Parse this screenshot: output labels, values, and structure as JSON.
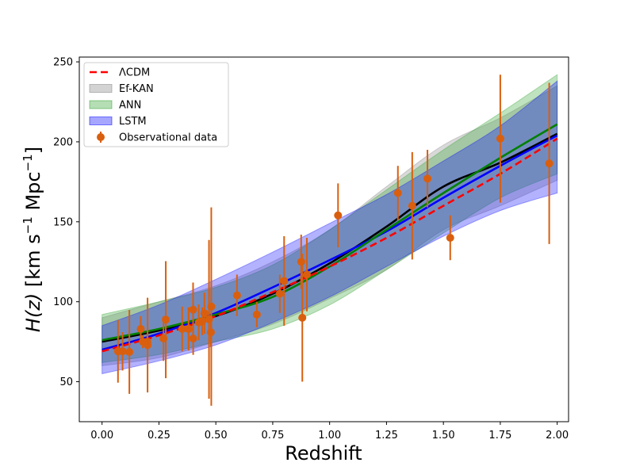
{
  "chart_data": {
    "type": "line",
    "xlabel": "Redshift",
    "ylabel_parts": [
      "H(z)",
      " [km s",
      "−1",
      " Mpc",
      "−1",
      "]"
    ],
    "xlim": [
      -0.1,
      2.05
    ],
    "ylim": [
      25,
      253
    ],
    "x_ticks": [
      "0.00",
      "0.25",
      "0.50",
      "0.75",
      "1.00",
      "1.25",
      "1.50",
      "1.75",
      "2.00"
    ],
    "y_ticks": [
      "50",
      "100",
      "150",
      "200",
      "250"
    ],
    "legend_position": "upper-left",
    "series": [
      {
        "name": "ΛCDM",
        "kind": "line",
        "color": "#ff0000",
        "style": "dashed",
        "x": [
          0,
          0.25,
          0.5,
          0.75,
          1.0,
          1.25,
          1.5,
          1.75,
          2.0
        ],
        "y": [
          69,
          79,
          91,
          106,
          122,
          140,
          160,
          180,
          202
        ]
      },
      {
        "name": "Ef-KAN",
        "kind": "band",
        "color": "#808080",
        "x": [
          0,
          0.25,
          0.5,
          0.75,
          1.0,
          1.25,
          1.5,
          1.75,
          2.0
        ],
        "y": [
          75,
          82,
          91,
          105,
          124,
          147,
          172,
          187,
          205
        ],
        "lower": [
          60,
          65,
          75,
          86,
          102,
          120,
          145,
          160,
          176
        ],
        "upper": [
          90,
          100,
          110,
          125,
          145,
          172,
          198,
          215,
          235
        ]
      },
      {
        "name": "ANN",
        "kind": "band",
        "color": "#2ca02c",
        "x": [
          0,
          0.25,
          0.5,
          0.75,
          1.0,
          1.25,
          1.5,
          1.75,
          2.0
        ],
        "y": [
          76,
          83,
          92,
          103,
          122,
          145,
          168,
          190,
          211
        ],
        "lower": [
          62,
          67,
          75,
          83,
          98,
          120,
          143,
          165,
          180
        ],
        "upper": [
          92,
          100,
          109,
          123,
          145,
          170,
          195,
          218,
          242
        ]
      },
      {
        "name": "LSTM",
        "kind": "band",
        "color": "#0000ff",
        "x": [
          0,
          0.25,
          0.5,
          0.75,
          1.0,
          1.25,
          1.5,
          1.75,
          2.0
        ],
        "y": [
          70,
          80,
          93,
          109,
          126,
          144,
          165,
          185,
          204
        ],
        "lower": [
          55,
          63,
          73,
          87,
          103,
          122,
          141,
          157,
          168
        ],
        "upper": [
          85,
          98,
          114,
          131,
          149,
          167,
          188,
          210,
          238
        ]
      },
      {
        "name": "Observational data",
        "kind": "errorbar",
        "color": "#d95f0e",
        "points": [
          {
            "x": 0.07,
            "y": 69,
            "err": 19.6
          },
          {
            "x": 0.09,
            "y": 69,
            "err": 12
          },
          {
            "x": 0.12,
            "y": 68.6,
            "err": 26.2
          },
          {
            "x": 0.17,
            "y": 83,
            "err": 8
          },
          {
            "x": 0.179,
            "y": 75,
            "err": 4
          },
          {
            "x": 0.199,
            "y": 75,
            "err": 5
          },
          {
            "x": 0.2,
            "y": 72.9,
            "err": 29.6
          },
          {
            "x": 0.27,
            "y": 77,
            "err": 14
          },
          {
            "x": 0.28,
            "y": 88.8,
            "err": 36.6
          },
          {
            "x": 0.352,
            "y": 83,
            "err": 14
          },
          {
            "x": 0.38,
            "y": 83,
            "err": 13.5
          },
          {
            "x": 0.3802,
            "y": 83,
            "err": 13.5
          },
          {
            "x": 0.4,
            "y": 95,
            "err": 17
          },
          {
            "x": 0.4004,
            "y": 77,
            "err": 10.2
          },
          {
            "x": 0.4247,
            "y": 87.1,
            "err": 11.2
          },
          {
            "x": 0.44,
            "y": 87.8,
            "err": 8.7
          },
          {
            "x": 0.4497,
            "y": 92.8,
            "err": 12.9
          },
          {
            "x": 0.47,
            "y": 89,
            "err": 49.6
          },
          {
            "x": 0.4783,
            "y": 80.9,
            "err": 9
          },
          {
            "x": 0.48,
            "y": 97,
            "err": 62
          },
          {
            "x": 0.593,
            "y": 104,
            "err": 13
          },
          {
            "x": 0.68,
            "y": 92,
            "err": 8
          },
          {
            "x": 0.781,
            "y": 105,
            "err": 12
          },
          {
            "x": 0.8,
            "y": 113,
            "err": 28
          },
          {
            "x": 0.875,
            "y": 125,
            "err": 17
          },
          {
            "x": 0.88,
            "y": 90,
            "err": 40
          },
          {
            "x": 0.9,
            "y": 117,
            "err": 23
          },
          {
            "x": 1.037,
            "y": 154,
            "err": 20
          },
          {
            "x": 1.3,
            "y": 168,
            "err": 17
          },
          {
            "x": 1.363,
            "y": 160,
            "err": 33.6
          },
          {
            "x": 1.43,
            "y": 177,
            "err": 18
          },
          {
            "x": 1.53,
            "y": 140,
            "err": 14
          },
          {
            "x": 1.75,
            "y": 202,
            "err": 40
          },
          {
            "x": 1.965,
            "y": 186.5,
            "err": 50.4
          }
        ]
      }
    ]
  }
}
